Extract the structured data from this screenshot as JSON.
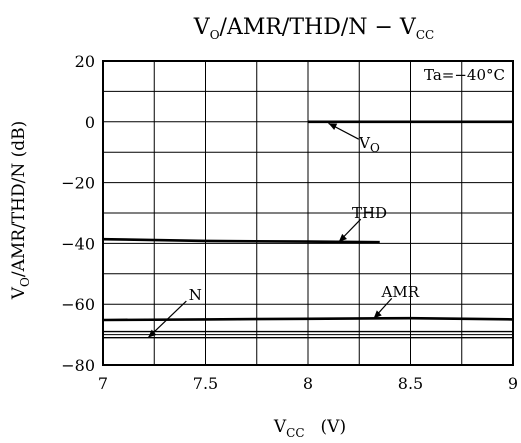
{
  "chart_data": {
    "type": "line",
    "title": {
      "main": "V",
      "sub1": "O",
      "rest": "/AMR/THD/N  −  V",
      "sub2": "CC"
    },
    "xlabel": {
      "main": "V",
      "sub": "CC",
      "unit": "(V)"
    },
    "ylabel": {
      "main": "V",
      "sub": "O",
      "rest": "/AMR/THD/N   (dB)"
    },
    "xlim": [
      7,
      9
    ],
    "ylim": [
      -80,
      20
    ],
    "x_ticks": [
      7,
      7.5,
      8,
      8.5,
      9
    ],
    "x_tick_labels": [
      "7",
      "7.5",
      "8",
      "8.5",
      "9"
    ],
    "y_ticks": [
      20,
      0,
      -20,
      -40,
      -60,
      -80
    ],
    "y_tick_labels": [
      "20",
      "0",
      "−20",
      "−40",
      "−60",
      "−80"
    ],
    "x_grid_step": 0.25,
    "y_grid_step": 10,
    "grid": true,
    "condition": "Ta=−40°C",
    "series": [
      {
        "key": "vo",
        "label": {
          "main": "V",
          "sub": "O"
        },
        "x": [
          8.0,
          9.0
        ],
        "y": [
          0,
          0
        ],
        "weight": "bold"
      },
      {
        "key": "thd",
        "label": {
          "main": "THD",
          "sub": ""
        },
        "x": [
          7.0,
          7.5,
          8.0,
          8.35
        ],
        "y": [
          -38.6,
          -39.2,
          -39.4,
          -39.6
        ],
        "weight": "bold"
      },
      {
        "key": "amr",
        "label": {
          "main": "AMR",
          "sub": ""
        },
        "x": [
          7.0,
          7.5,
          8.0,
          8.5,
          9.0
        ],
        "y": [
          -65.2,
          -65.0,
          -64.8,
          -64.6,
          -65.0
        ],
        "weight": "bold"
      },
      {
        "key": "n",
        "label": {
          "main": "N",
          "sub": ""
        },
        "x": [
          7.0,
          9.0
        ],
        "y": [
          -71.0,
          -71.0
        ],
        "weight": "thin"
      }
    ],
    "extra_lines": [
      {
        "x": [
          7.0,
          9.0
        ],
        "y": [
          -69.0,
          -69.0
        ]
      }
    ],
    "annotations": [
      {
        "series": "vo",
        "label_at": [
          8.3,
          -7
        ],
        "arrow_to": [
          8.1,
          -0.5
        ]
      },
      {
        "series": "thd",
        "label_at": [
          8.3,
          -30
        ],
        "arrow_to": [
          8.15,
          -39.5
        ]
      },
      {
        "series": "amr",
        "label_at": [
          8.45,
          -56
        ],
        "arrow_to": [
          8.32,
          -64.7
        ]
      },
      {
        "series": "n",
        "label_at": [
          7.45,
          -57
        ],
        "arrow_to": [
          7.22,
          -71.0
        ]
      }
    ]
  }
}
